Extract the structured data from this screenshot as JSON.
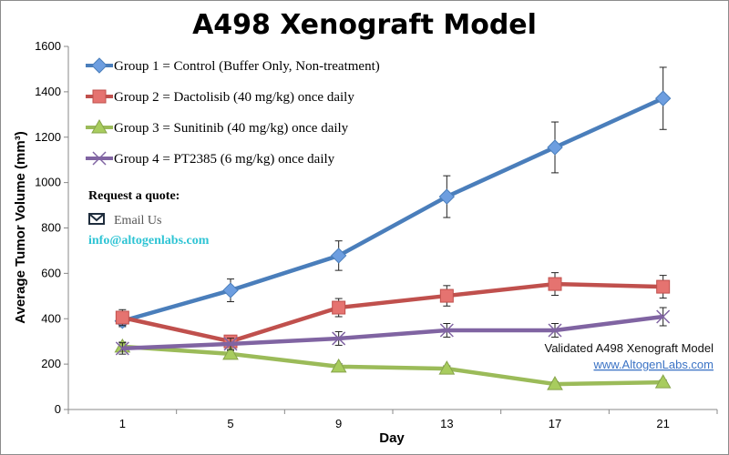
{
  "chart_data": {
    "type": "line",
    "title": "A498 Xenograft Model",
    "xlabel": "Day",
    "ylabel": "Average Tumor Volume (mm³)",
    "categories": [
      "1",
      "5",
      "9",
      "13",
      "17",
      "21"
    ],
    "ylim": [
      0,
      1600
    ],
    "yticks": [
      "0",
      "200",
      "400",
      "600",
      "800",
      "1000",
      "1200",
      "1400",
      "1600"
    ],
    "grid": false,
    "legend_position": "top-left",
    "series": [
      {
        "name": "Group 1 = Control (Buffer Only, Non-treatment)",
        "color": "#4a7ebb",
        "marker": "diamond",
        "values": [
          390,
          525,
          678,
          938,
          1155,
          1371
        ],
        "errors": [
          25,
          50,
          65,
          92,
          112,
          137
        ]
      },
      {
        "name": "Group 2 = Dactolisib (40 mg/kg) once daily",
        "color": "#c0504d",
        "marker": "square",
        "values": [
          405,
          300,
          449,
          501,
          553,
          541
        ],
        "errors": [
          35,
          25,
          40,
          45,
          50,
          50
        ]
      },
      {
        "name": "Group 3 = Sunitinib (40 mg/kg) once daily",
        "color": "#9bbb59",
        "marker": "triangle",
        "values": [
          277,
          245,
          189,
          180,
          112,
          120
        ],
        "errors": [
          20,
          15,
          12,
          12,
          10,
          10
        ]
      },
      {
        "name": "Group 4 = PT2385 (6 mg/kg) once daily",
        "color": "#8064a2",
        "marker": "x",
        "values": [
          269,
          289,
          313,
          349,
          349,
          409
        ],
        "errors": [
          25,
          25,
          30,
          30,
          30,
          40
        ]
      }
    ]
  },
  "annotations": {
    "quote_heading": "Request a quote:",
    "email_label": "Email Us",
    "email_icon": "envelope-icon",
    "email_address": "info@altogenlabs.com",
    "watermark_text": "Validated A498 Xenograft Model",
    "website": "www.AltogenLabs.com"
  }
}
